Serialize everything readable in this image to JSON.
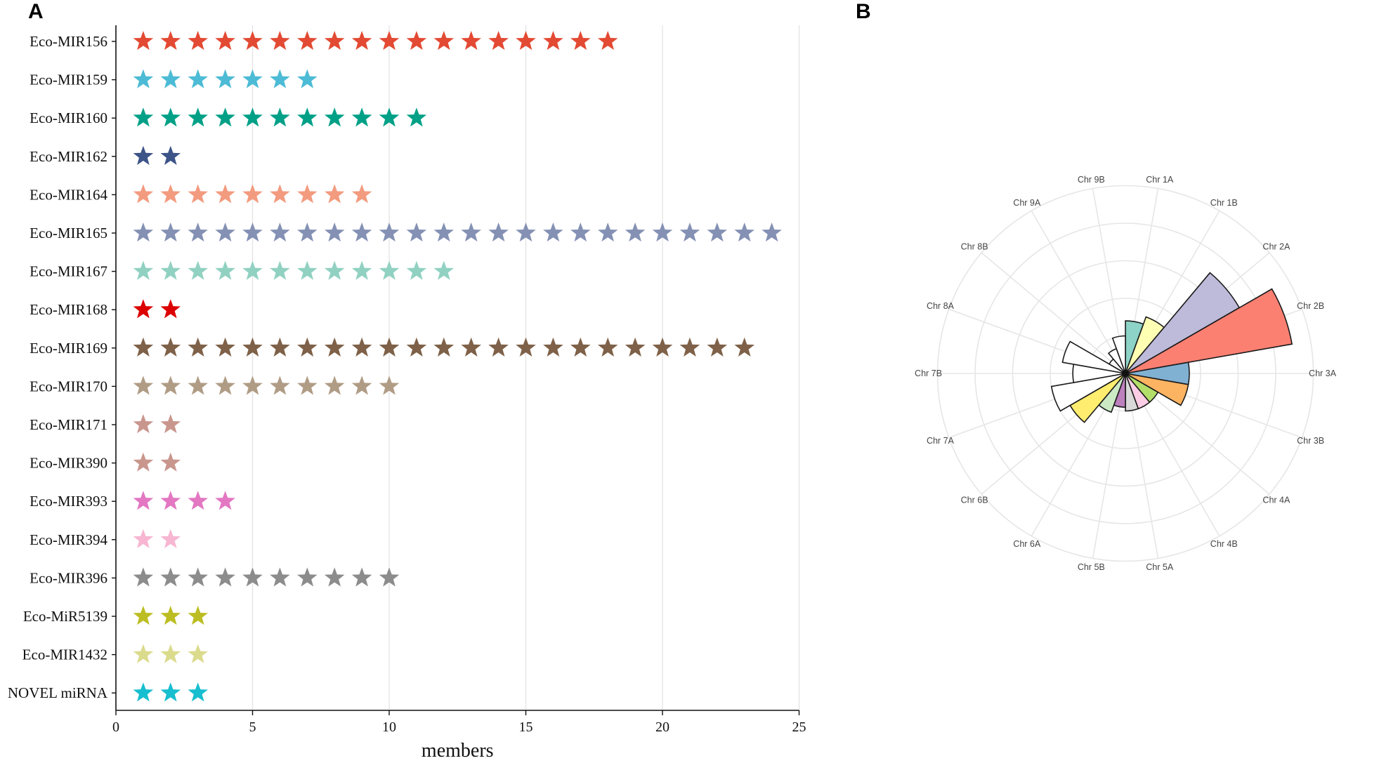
{
  "chart_data": [
    {
      "panel": "A",
      "type": "scatter",
      "marker": "star",
      "xlabel": "members",
      "ylabel": "",
      "xlim": [
        0,
        25
      ],
      "xticks": [
        0,
        5,
        10,
        15,
        20,
        25
      ],
      "grid": "vertical",
      "categories": [
        {
          "name": "Eco-MIR156",
          "count": 18,
          "color": "#E34A33"
        },
        {
          "name": "Eco-MIR159",
          "count": 7,
          "color": "#4DBBD5"
        },
        {
          "name": "Eco-MIR160",
          "count": 11,
          "color": "#00A087"
        },
        {
          "name": "Eco-MIR162",
          "count": 2,
          "color": "#3C5488"
        },
        {
          "name": "Eco-MIR164",
          "count": 9,
          "color": "#F39B7F"
        },
        {
          "name": "Eco-MIR165",
          "count": 24,
          "color": "#8491B4"
        },
        {
          "name": "Eco-MIR167",
          "count": 12,
          "color": "#91D1C2"
        },
        {
          "name": "Eco-MIR168",
          "count": 2,
          "color": "#DC0000"
        },
        {
          "name": "Eco-MIR169",
          "count": 23,
          "color": "#7E6148"
        },
        {
          "name": "Eco-MIR170",
          "count": 10,
          "color": "#B09C85"
        },
        {
          "name": "Eco-MIR171",
          "count": 2,
          "color": "#C9968E"
        },
        {
          "name": "Eco-MIR390",
          "count": 2,
          "color": "#C9968E"
        },
        {
          "name": "Eco-MIR393",
          "count": 4,
          "color": "#E377C2"
        },
        {
          "name": "Eco-MIR394",
          "count": 2,
          "color": "#F7B6D2"
        },
        {
          "name": "Eco-MIR396",
          "count": 10,
          "color": "#8C8C8C"
        },
        {
          "name": "Eco-MiR5139",
          "count": 3,
          "color": "#BCBD22"
        },
        {
          "name": "Eco-MIR1432",
          "count": 3,
          "color": "#DBDB8D"
        },
        {
          "name": "NOVEL miRNA",
          "count": 3,
          "color": "#17BECF"
        }
      ]
    },
    {
      "panel": "B",
      "type": "bar",
      "coordinate_system": "polar",
      "grid": true,
      "rmax": 5,
      "gridlines": [
        1,
        2,
        3,
        4,
        5
      ],
      "categories": [
        "Chr 1A",
        "Chr 1B",
        "Chr 2A",
        "Chr 2B",
        "Chr 3A",
        "Chr 3B",
        "Chr 4A",
        "Chr 4B",
        "Chr 5A",
        "Chr 5B",
        "Chr 6A",
        "Chr 6B",
        "Chr 7A",
        "Chr 7B",
        "Chr 8A",
        "Chr 8B",
        "Chr 9A",
        "Chr 9B"
      ],
      "values": [
        1.4,
        1.6,
        3.5,
        4.5,
        1.7,
        1.7,
        1.0,
        1.0,
        1.0,
        0.9,
        1.1,
        1.7,
        2.0,
        1.4,
        1.7,
        0.5,
        0.7,
        1.0
      ],
      "colors": [
        "#8DD3C7",
        "#FFFFB3",
        "#BEBADA",
        "#FB8072",
        "#80B1D3",
        "#FDB462",
        "#B3DE69",
        "#FCCDE5",
        "#D9D9D9",
        "#BC80BD",
        "#CCEBC5",
        "#FFED6F",
        "#FFFFFF",
        "#FFFFFF",
        "#FFFFFF",
        "#FFFFFF",
        "#FFFFFF",
        "#FFFFFF"
      ]
    }
  ]
}
